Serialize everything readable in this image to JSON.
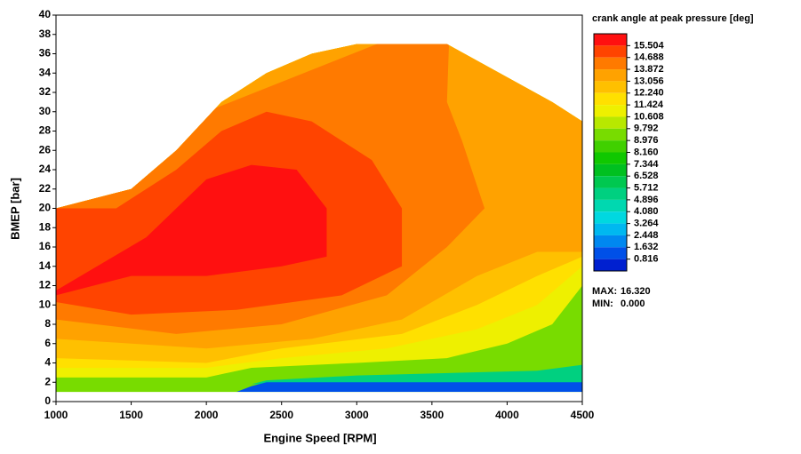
{
  "chart_data": {
    "type": "contour",
    "xlabel": "Engine Speed [RPM]",
    "ylabel": "BMEP [bar]",
    "xlim": [
      1000,
      4500
    ],
    "xticks": [
      1000,
      1500,
      2000,
      2500,
      3000,
      3500,
      4000,
      4500
    ],
    "ylim": [
      0,
      40
    ],
    "yticks": [
      0,
      2,
      4,
      6,
      8,
      10,
      12,
      14,
      16,
      18,
      20,
      22,
      24,
      26,
      28,
      30,
      32,
      34,
      36,
      38,
      40
    ],
    "domain": {
      "x": [
        1000,
        4500,
        4500,
        4300,
        3600,
        3000,
        2700,
        2400,
        2100,
        1800,
        1500,
        1000
      ],
      "y": [
        1,
        1,
        29,
        31,
        37,
        37,
        36,
        34,
        31,
        26,
        22,
        20
      ]
    },
    "colorbar": {
      "title": "crank angle at peak pressure [deg]",
      "colors": [
        "#ff1010",
        "#ff4400",
        "#ff7a00",
        "#ffa200",
        "#ffc000",
        "#ffe000",
        "#eef000",
        "#b8e800",
        "#78dc00",
        "#40d000",
        "#10c800",
        "#00c020",
        "#00c850",
        "#00d080",
        "#00d8b0",
        "#00d8e0",
        "#00b8f0",
        "#0088f0",
        "#0050e8",
        "#0020d0"
      ],
      "levels": [
        15.504,
        14.688,
        13.872,
        13.056,
        {
          "value": 12.24,
          "label": "12.240"
        },
        11.424,
        10.608,
        9.792,
        8.976,
        {
          "value": 8.16,
          "label": "8.160"
        },
        7.344,
        6.528,
        5.712,
        4.896,
        {
          "value": 4.08,
          "label": "4.080"
        },
        3.264,
        2.448,
        1.632,
        0.816
      ],
      "max_label": "MAX:",
      "max": {
        "value": 16.32,
        "label": "16.320"
      },
      "min_label": "MIN:",
      "min": {
        "value": 0,
        "label": "0.000"
      }
    },
    "regions": [
      {
        "level": 8.976,
        "x": [
          1000,
          4500,
          4500,
          1000
        ],
        "y": [
          0,
          0,
          40,
          40
        ]
      },
      {
        "level": 4.896,
        "x": [
          2300,
          4500,
          4500,
          4200,
          3000,
          2400
        ],
        "y": [
          1.8,
          1.8,
          3.8,
          3.2,
          2.7,
          2.2
        ]
      },
      {
        "level": 0.816,
        "x": [
          2200,
          4500,
          4500,
          2400,
          2300
        ],
        "y": [
          1,
          1,
          2,
          2,
          1.6
        ]
      },
      {
        "level": 10.608,
        "x": [
          1000,
          2000,
          2300,
          3000,
          3600,
          4000,
          4300,
          4500,
          4500,
          1000
        ],
        "y": [
          2.5,
          2.5,
          3.5,
          4,
          4.5,
          6,
          8,
          12,
          40,
          40
        ]
      },
      {
        "level": 11.424,
        "x": [
          1000,
          2000,
          2500,
          3200,
          3800,
          4200,
          4500,
          4500,
          1000
        ],
        "y": [
          3.5,
          3.5,
          4.5,
          5.5,
          7.5,
          10,
          14,
          40,
          40
        ]
      },
      {
        "level": 12.24,
        "x": [
          1000,
          2000,
          2500,
          3300,
          3800,
          4200,
          4500,
          4500,
          1000
        ],
        "y": [
          4.5,
          4,
          5.5,
          7,
          10,
          13,
          15,
          40,
          40
        ]
      },
      {
        "level": 13.056,
        "x": [
          1000,
          2000,
          2700,
          3300,
          3800,
          4200,
          4500,
          4500,
          1000
        ],
        "y": [
          6.5,
          5.5,
          6.5,
          8.5,
          13,
          15.5,
          15.5,
          40,
          40
        ]
      },
      {
        "level": 13.872,
        "x": [
          1000,
          1800,
          2500,
          3200,
          3600,
          3850,
          3700,
          3600,
          3620,
          2000,
          1000
        ],
        "y": [
          8.5,
          7,
          8,
          11,
          16,
          20,
          27,
          31,
          40,
          30,
          21
        ]
      },
      {
        "level": 14.688,
        "x": [
          1000,
          1500,
          2200,
          2900,
          3300,
          3300,
          3100,
          2700,
          2400,
          2100,
          1800,
          1400,
          1000
        ],
        "y": [
          10.3,
          9,
          9.5,
          11,
          14,
          20,
          25,
          29,
          30,
          28,
          24,
          20,
          20
        ]
      },
      {
        "level": 15.504,
        "x": [
          1000,
          1500,
          2000,
          2500,
          2800,
          2800,
          2600,
          2300,
          2000,
          1600,
          1000
        ],
        "y": [
          11,
          13,
          13,
          14,
          15,
          20,
          24,
          24.5,
          23,
          17,
          11.5
        ]
      }
    ]
  }
}
